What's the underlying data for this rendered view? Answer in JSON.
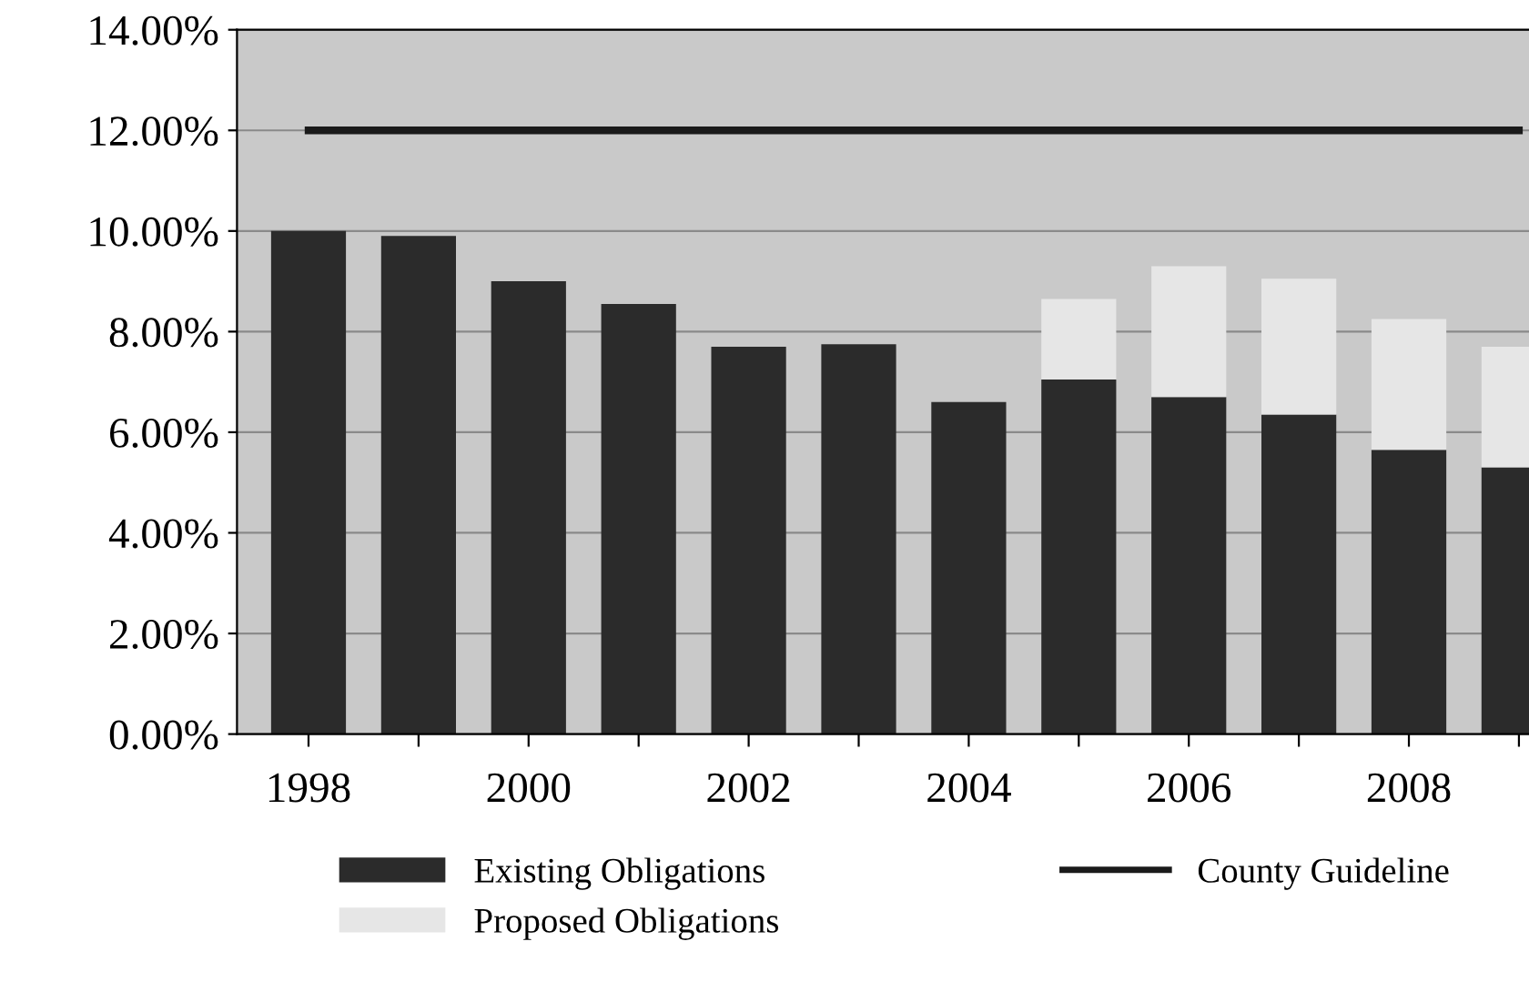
{
  "chart_data": {
    "type": "bar",
    "stacked": true,
    "categories": [
      "1998",
      null,
      "2000",
      null,
      "2002",
      null,
      "2004",
      null,
      "2006",
      null,
      "2008",
      null
    ],
    "series": [
      {
        "name": "Existing Obligations",
        "color": "#2b2b2b",
        "values": [
          10.0,
          9.9,
          9.0,
          8.55,
          7.7,
          7.75,
          6.6,
          7.05,
          6.7,
          6.35,
          5.65,
          5.3
        ]
      },
      {
        "name": "Proposed Obligations",
        "color": "#e6e6e6",
        "values": [
          null,
          null,
          null,
          null,
          null,
          null,
          null,
          1.6,
          2.6,
          2.7,
          2.6,
          2.4
        ]
      },
      {
        "name": "County Guideline",
        "type": "line",
        "color": "#1a1a1a",
        "values": [
          12,
          12,
          12,
          12,
          12,
          12,
          12,
          12,
          12,
          12,
          12,
          12
        ]
      }
    ],
    "ylim": [
      0,
      14
    ],
    "yticks": [
      {
        "value": 0,
        "label": "0.00%"
      },
      {
        "value": 2,
        "label": "2.00%"
      },
      {
        "value": 4,
        "label": "4.00%"
      },
      {
        "value": 6,
        "label": "6.00%"
      },
      {
        "value": 8,
        "label": "8.00%"
      },
      {
        "value": 10,
        "label": "10.00%"
      },
      {
        "value": 12,
        "label": "12.00%"
      },
      {
        "value": 14,
        "label": "14.00%"
      }
    ],
    "grid": "y",
    "legend": "bottom"
  }
}
